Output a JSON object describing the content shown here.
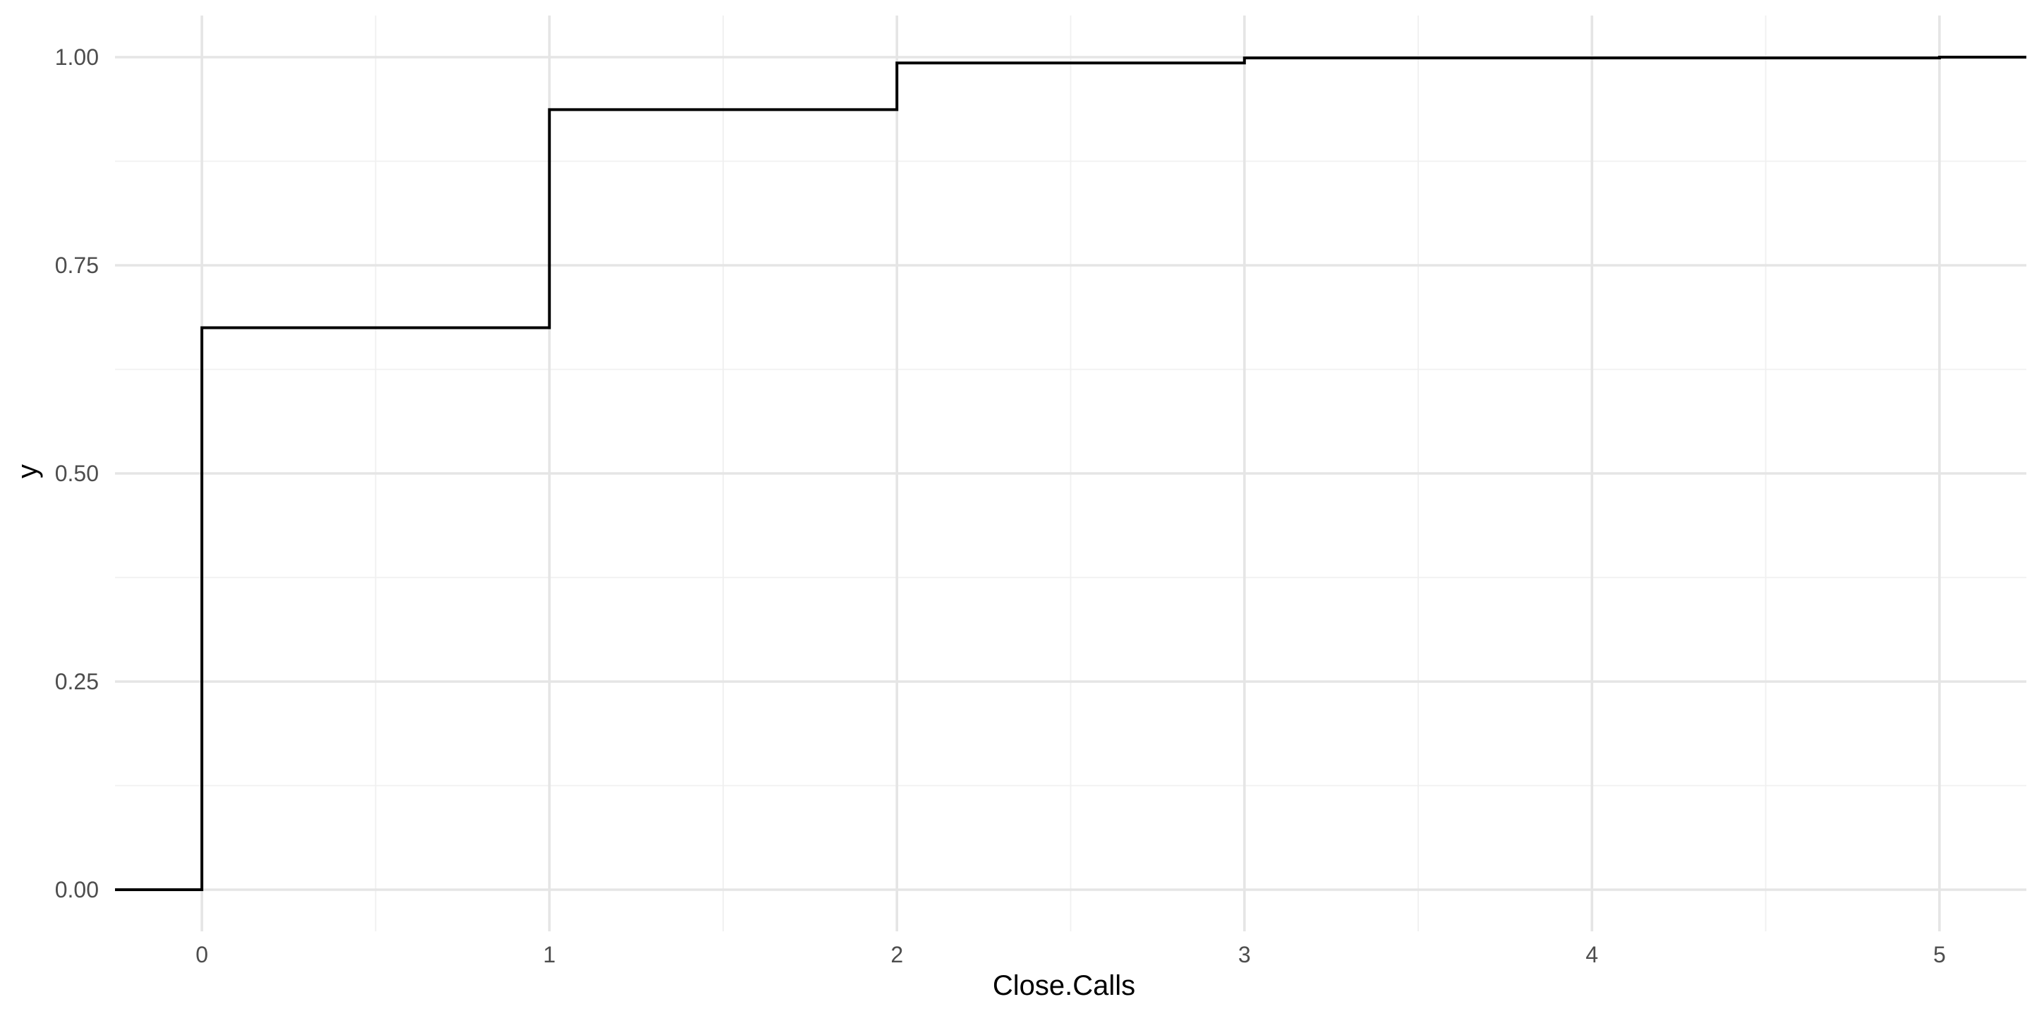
{
  "chart_data": {
    "type": "line",
    "subtype": "step",
    "xlabel": "Close.Calls",
    "ylabel": "y",
    "x_ticks": [
      0,
      1,
      2,
      3,
      4,
      5
    ],
    "x_tick_labels": [
      "0",
      "1",
      "2",
      "3",
      "4",
      "5"
    ],
    "y_ticks": [
      0,
      0.25,
      0.5,
      0.75,
      1
    ],
    "y_tick_labels": [
      "0.00",
      "0.25",
      "0.50",
      "0.75",
      "1.00"
    ],
    "xlim": [
      -0.25,
      5.25
    ],
    "ylim": [
      -0.05,
      1.05
    ],
    "grid": true,
    "legend": "none",
    "line_color": "#000000",
    "series": [
      {
        "x": [
          -0.25,
          0,
          1,
          2,
          3,
          5,
          5.25
        ],
        "y": [
          0,
          0.675,
          0.937,
          0.993,
          0.999,
          1,
          1
        ]
      }
    ]
  }
}
